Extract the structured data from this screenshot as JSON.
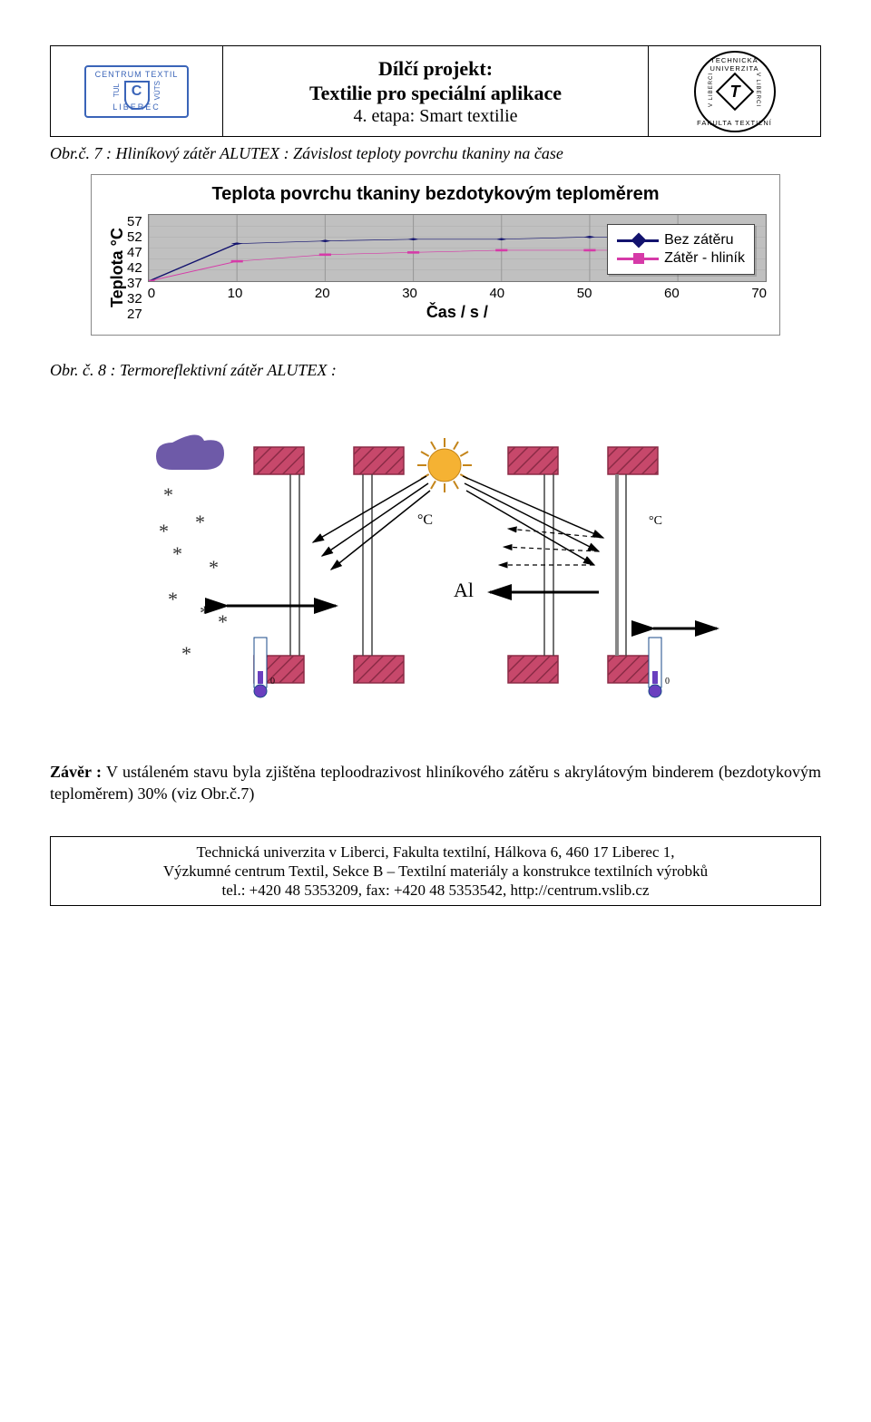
{
  "header": {
    "title_line1": "Dílčí projekt:",
    "title_line2": "Textilie pro speciální aplikace",
    "subtitle": "4. etapa: Smart textilie",
    "logo_ct_top": "CENTRUM TEXTIL",
    "logo_ct_bottom": "LIBEREC",
    "logo_ct_left": "TUL",
    "logo_ct_right": "VÚTS",
    "logo_ct_letter": "C",
    "logo_tul_top": "TECHNICKÁ UNIVERZITA",
    "logo_tul_bottom": "FAKULTA TEXTILNÍ",
    "logo_tul_left": "V LIBERCI",
    "logo_tul_right": "V LIBERCI",
    "logo_tul_letter": "T"
  },
  "caption7": "Obr.č. 7 : Hliníkový zátěr ALUTEX : Závislost teploty povrchu tkaniny na čase",
  "chart": {
    "type": "line",
    "title": "Teplota povrchu tkaniny bezdotykovým teploměrem",
    "y_label": "Teplota °C",
    "x_label": "Čas / s /",
    "xlim": [
      0,
      70
    ],
    "ylim": [
      27,
      57
    ],
    "x_ticks": [
      0,
      10,
      20,
      30,
      40,
      50,
      60,
      70
    ],
    "y_ticks": [
      57,
      52,
      47,
      42,
      37,
      32,
      27
    ],
    "background_color": "#c0c0c0",
    "grid_color": "#9a9a9a",
    "legend_bg": "#ffffff",
    "legend_border": "#444444",
    "title_fontsize": 20,
    "label_fontsize": 18,
    "tick_fontsize": 15,
    "line_width": 3,
    "marker_size": 12,
    "series": [
      {
        "name": "Bez zátěru",
        "color": "#12126e",
        "marker": "diamond",
        "x": [
          0,
          10,
          20,
          30,
          40,
          50,
          60
        ],
        "y": [
          27,
          44,
          45.2,
          46,
          46,
          47,
          47
        ]
      },
      {
        "name": "Zátěr - hliník",
        "color": "#d63aa8",
        "marker": "square",
        "x": [
          0,
          10,
          20,
          30,
          40,
          50,
          60
        ],
        "y": [
          27,
          36,
          39,
          40,
          41,
          41,
          41
        ]
      }
    ]
  },
  "caption8": "Obr. č. 8 :  Termoreflektivní zátěr ALUTEX :",
  "illustration": {
    "wall_fill": "#c7486b",
    "wall_hatch": "#8b2b46",
    "sun_fill": "#f5b233",
    "cold_cloud": "#6e5aa8",
    "glass_stroke": "#444444",
    "arrow_stroke": "#000000",
    "label_al": "Al",
    "label_c1": "°C",
    "label_c2": "°C",
    "thermo_fluid": "#6a3fbf"
  },
  "conclusion_label": "Závěr :",
  "conclusion_body": " V ustáleném stavu byla zjištěna teploodrazivost hliníkového zátěru s akrylátovým binderem (bezdotykovým teploměrem) 30% (viz Obr.č.7)",
  "footer": {
    "l1": "Technická univerzita v Liberci, Fakulta textilní, Hálkova 6, 460 17 Liberec 1,",
    "l2": "Výzkumné centrum Textil, Sekce B – Textilní materiály a konstrukce textilních výrobků",
    "l3": "tel.: +420 48 5353209, fax: +420 48 5353542, http://centrum.vslib.cz"
  }
}
